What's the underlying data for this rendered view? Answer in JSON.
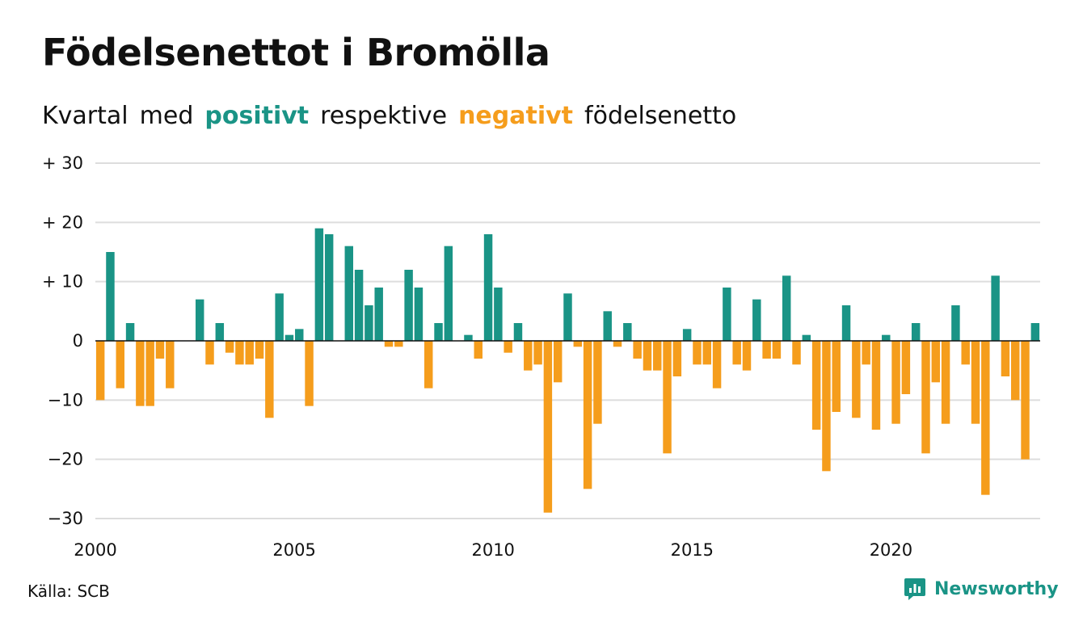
{
  "title": "Födelsenettot i Bromölla",
  "subtitle": {
    "part1": "Kvartal",
    "part2": "med",
    "positive": "positivt",
    "part3": "respektive",
    "negative": "negativt",
    "part4": "födelsenetto"
  },
  "source": "Källa: SCB",
  "brand": "Newsworthy",
  "colors": {
    "positive": "#1a9486",
    "negative": "#f59d1c",
    "grid": "#dddddd"
  },
  "chart_data": {
    "type": "bar",
    "title": "Födelsenettot i Bromölla",
    "xlabel": "",
    "ylabel": "",
    "ylim": [
      -30,
      30
    ],
    "xlim": [
      2000,
      2023.75
    ],
    "grid": true,
    "yticks": [
      {
        "value": 30,
        "label": "+ 30"
      },
      {
        "value": 20,
        "label": "+ 20"
      },
      {
        "value": 10,
        "label": "+ 10"
      },
      {
        "value": 0,
        "label": "0"
      },
      {
        "value": -10,
        "label": "−10"
      },
      {
        "value": -20,
        "label": "−20"
      },
      {
        "value": -30,
        "label": "−30"
      }
    ],
    "xticks": [
      {
        "value": 2000,
        "label": "2000"
      },
      {
        "value": 2005,
        "label": "2005"
      },
      {
        "value": 2010,
        "label": "2010"
      },
      {
        "value": 2015,
        "label": "2015"
      },
      {
        "value": 2020,
        "label": "2020"
      }
    ],
    "start_year": 2000,
    "values": [
      -10,
      15,
      -8,
      3,
      -11,
      -11,
      -3,
      -8,
      0,
      0,
      7,
      -4,
      3,
      -2,
      -4,
      -4,
      -3,
      -13,
      8,
      1,
      2,
      -11,
      19,
      18,
      0,
      16,
      12,
      6,
      9,
      -1,
      -1,
      12,
      9,
      -8,
      3,
      16,
      0,
      1,
      -3,
      18,
      9,
      -2,
      3,
      -5,
      -4,
      -29,
      -7,
      8,
      -1,
      -25,
      -14,
      5,
      -1,
      3,
      -3,
      -5,
      -5,
      -19,
      -6,
      2,
      -4,
      -4,
      -8,
      9,
      -4,
      -5,
      7,
      -3,
      -3,
      11,
      -4,
      1,
      -15,
      -22,
      -12,
      6,
      -13,
      -4,
      -15,
      1,
      -14,
      -9,
      3,
      -19,
      -7,
      -14,
      6,
      -4,
      -14,
      -26,
      11,
      -6,
      -10,
      -20,
      3
    ]
  }
}
